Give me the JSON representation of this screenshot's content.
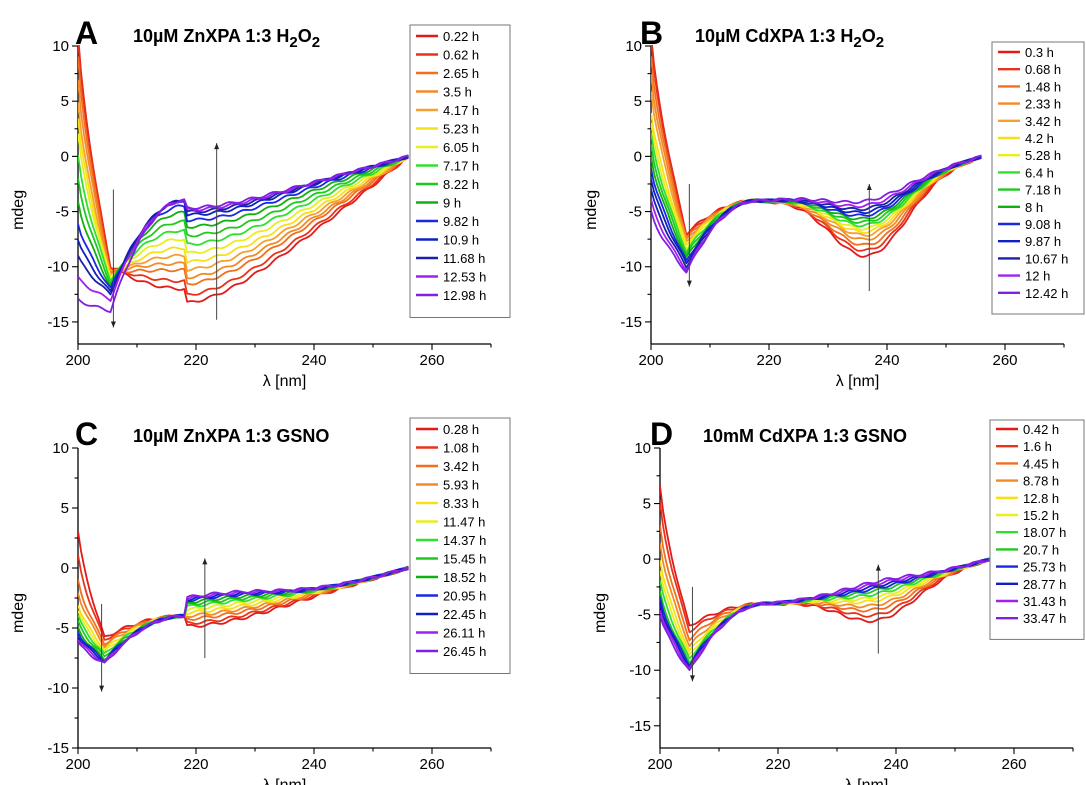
{
  "chart_data": [
    {
      "type": "line",
      "panel_letter": "A",
      "title": "10µM ZnXPA 1:3 H2O2",
      "title_parts": [
        "10µM ZnXPA 1:3 H",
        "2",
        "O",
        "2"
      ],
      "xlabel": "λ [nm]",
      "ylabel": "mdeg",
      "xlim": [
        200,
        270
      ],
      "ylim": [
        -17,
        10
      ],
      "xticks": [
        200,
        220,
        240,
        260
      ],
      "yticks": [
        10,
        5,
        0,
        -5,
        -10,
        -15
      ],
      "grid": false,
      "legend_position": "top-right",
      "dip_wavelength": 205.5,
      "arrow_down": {
        "x": 206,
        "y_from": -3,
        "y_to": -15.5
      },
      "arrow_up": {
        "x": 223.5,
        "y_from": -14.8,
        "y_to": 1.2
      },
      "series": [
        {
          "name": "0.22 h",
          "color": "#e31a1a",
          "early": 11,
          "dip": -10,
          "plateau": -13.5
        },
        {
          "name": "0.62 h",
          "color": "#e8331a",
          "early": 10.5,
          "dip": -10,
          "plateau": -12.8
        },
        {
          "name": "2.65 h",
          "color": "#f07020",
          "early": 9,
          "dip": -10.5,
          "plateau": -11.8
        },
        {
          "name": "3.5 h",
          "color": "#f28a28",
          "early": 7,
          "dip": -10.5,
          "plateau": -11.2
        },
        {
          "name": "4.17 h",
          "color": "#f5a030",
          "early": 5,
          "dip": -10.8,
          "plateau": -10.5
        },
        {
          "name": "5.23 h",
          "color": "#f7e01a",
          "early": 3.5,
          "dip": -11,
          "plateau": -9.8
        },
        {
          "name": "6.05 h",
          "color": "#e8ee20",
          "early": 2,
          "dip": -11,
          "plateau": -9.0
        },
        {
          "name": "7.17 h",
          "color": "#30e030",
          "early": 0,
          "dip": -11.2,
          "plateau": -8.2
        },
        {
          "name": "8.22 h",
          "color": "#20c820",
          "early": -2,
          "dip": -11.5,
          "plateau": -7.4
        },
        {
          "name": "9 h",
          "color": "#10b010",
          "early": -4,
          "dip": -11.8,
          "plateau": -6.6
        },
        {
          "name": "9.82 h",
          "color": "#1a28e0",
          "early": -6,
          "dip": -12,
          "plateau": -6.0
        },
        {
          "name": "10.9 h",
          "color": "#1020c0",
          "early": -7.5,
          "dip": -12.3,
          "plateau": -5.5
        },
        {
          "name": "11.68 h",
          "color": "#1a20a8",
          "early": -9,
          "dip": -12.5,
          "plateau": -5.2
        },
        {
          "name": "12.53 h",
          "color": "#a020f0",
          "early": -11,
          "dip": -13,
          "plateau": -5.0
        },
        {
          "name": "12.98 h",
          "color": "#8020e0",
          "early": -13,
          "dip": -14,
          "plateau": -4.8
        }
      ]
    },
    {
      "type": "line",
      "panel_letter": "B",
      "title": "10µM CdXPA 1:3 H2O2",
      "title_parts": [
        "10µM CdXPA 1:3 H",
        "2",
        "O",
        "2"
      ],
      "xlabel": "λ [nm]",
      "ylabel": "mdeg",
      "xlim": [
        200,
        270
      ],
      "ylim": [
        -17,
        10
      ],
      "xticks": [
        200,
        220,
        240,
        260
      ],
      "yticks": [
        10,
        5,
        0,
        -5,
        -10,
        -15
      ],
      "grid": false,
      "legend_position": "top-right",
      "dip_wavelength": 206,
      "arrow_down": {
        "x": 206.5,
        "y_from": -2.5,
        "y_to": -11.8
      },
      "arrow_up": {
        "x": 237,
        "y_from": -12.2,
        "y_to": -2.5
      },
      "series": [
        {
          "name": "0.3 h",
          "color": "#e31a1a",
          "early": 11,
          "dip": -7.0,
          "plateau": -10.5
        },
        {
          "name": "0.68 h",
          "color": "#e8331a",
          "early": 10.5,
          "dip": -7.2,
          "plateau": -10.0
        },
        {
          "name": "1.48 h",
          "color": "#f07020",
          "early": 9,
          "dip": -7.4,
          "plateau": -9.5
        },
        {
          "name": "2.33 h",
          "color": "#f28a28",
          "early": 7.5,
          "dip": -7.6,
          "plateau": -9.0
        },
        {
          "name": "3.42 h",
          "color": "#f5a030",
          "early": 6,
          "dip": -7.8,
          "plateau": -8.6
        },
        {
          "name": "4.2 h",
          "color": "#f7e01a",
          "early": 4,
          "dip": -8.0,
          "plateau": -8.3
        },
        {
          "name": "5.28 h",
          "color": "#e8ee20",
          "early": 3,
          "dip": -8.3,
          "plateau": -8.0
        },
        {
          "name": "6.4 h",
          "color": "#30e030",
          "early": 2,
          "dip": -8.6,
          "plateau": -7.7
        },
        {
          "name": "7.18 h",
          "color": "#20c820",
          "early": 1,
          "dip": -8.9,
          "plateau": -7.4
        },
        {
          "name": "8 h",
          "color": "#10b010",
          "early": 0,
          "dip": -9.2,
          "plateau": -7.1
        },
        {
          "name": "9.08 h",
          "color": "#1a28e0",
          "early": -1,
          "dip": -9.5,
          "plateau": -6.8
        },
        {
          "name": "9.87 h",
          "color": "#1020c0",
          "early": -2,
          "dip": -9.7,
          "plateau": -6.5
        },
        {
          "name": "10.67 h",
          "color": "#1a20a8",
          "early": -3,
          "dip": -10.0,
          "plateau": -6.2
        },
        {
          "name": "12 h",
          "color": "#a020f0",
          "early": -4,
          "dip": -10.3,
          "plateau": -5.9
        },
        {
          "name": "12.42 h",
          "color": "#8020e0",
          "early": -5,
          "dip": -10.5,
          "plateau": -5.5
        }
      ]
    },
    {
      "type": "line",
      "panel_letter": "C",
      "title": "10µM ZnXPA 1:3 GSNO",
      "xlabel": "λ [nm]",
      "ylabel": "mdeg",
      "xlim": [
        200,
        270
      ],
      "ylim": [
        -15,
        10
      ],
      "xticks": [
        200,
        220,
        240,
        260
      ],
      "yticks": [
        10,
        5,
        0,
        -5,
        -10,
        -15
      ],
      "grid": false,
      "legend_position": "top-right",
      "dip_wavelength": 204.5,
      "arrow_down": {
        "x": 204,
        "y_from": -3,
        "y_to": -10.3
      },
      "arrow_up": {
        "x": 221.5,
        "y_from": -7.5,
        "y_to": 0.8
      },
      "series": [
        {
          "name": "0.28 h",
          "color": "#e31a1a",
          "early": 3,
          "dip": -5.8,
          "plateau": -5.0
        },
        {
          "name": "1.08 h",
          "color": "#e8331a",
          "early": 1,
          "dip": -6.0,
          "plateau": -4.7
        },
        {
          "name": "3.42 h",
          "color": "#f07020",
          "early": -1,
          "dip": -6.3,
          "plateau": -4.3
        },
        {
          "name": "5.93 h",
          "color": "#f28a28",
          "early": -2,
          "dip": -6.5,
          "plateau": -4.0
        },
        {
          "name": "8.33 h",
          "color": "#f5e01a",
          "early": -3,
          "dip": -6.8,
          "plateau": -3.7
        },
        {
          "name": "11.47 h",
          "color": "#e8ee20",
          "early": -3.5,
          "dip": -7.0,
          "plateau": -3.4
        },
        {
          "name": "14.37 h",
          "color": "#30e030",
          "early": -4,
          "dip": -7.2,
          "plateau": -3.1
        },
        {
          "name": "15.45 h",
          "color": "#20c820",
          "early": -4.5,
          "dip": -7.4,
          "plateau": -2.9
        },
        {
          "name": "18.52 h",
          "color": "#10b010",
          "early": -5,
          "dip": -7.6,
          "plateau": -2.7
        },
        {
          "name": "20.95 h",
          "color": "#1a28e0",
          "early": -5.3,
          "dip": -7.7,
          "plateau": -2.5
        },
        {
          "name": "22.45 h",
          "color": "#1020c0",
          "early": -5.6,
          "dip": -7.8,
          "plateau": -2.4
        },
        {
          "name": "26.11 h",
          "color": "#a020f0",
          "early": -5.9,
          "dip": -7.9,
          "plateau": -2.3
        },
        {
          "name": "26.45 h",
          "color": "#8020e0",
          "early": -6.2,
          "dip": -8.0,
          "plateau": -2.2
        }
      ]
    },
    {
      "type": "line",
      "panel_letter": "D",
      "title": "10mM CdXPA 1:3 GSNO",
      "xlabel": "λ [nm]",
      "ylabel": "mdeg",
      "xlim": [
        200,
        270
      ],
      "ylim": [
        -17,
        10
      ],
      "xticks": [
        200,
        220,
        240,
        260
      ],
      "yticks": [
        10,
        5,
        0,
        -5,
        -10,
        -15
      ],
      "grid": false,
      "legend_position": "top-right",
      "dip_wavelength": 205,
      "arrow_down": {
        "x": 205.5,
        "y_from": -2.5,
        "y_to": -11
      },
      "arrow_up": {
        "x": 237,
        "y_from": -8.5,
        "y_to": -0.5
      },
      "series": [
        {
          "name": "0.42 h",
          "color": "#e31a1a",
          "early": 6.5,
          "dip": -6.0,
          "plateau": -7.0
        },
        {
          "name": "1.6 h",
          "color": "#e8331a",
          "early": 5,
          "dip": -6.5,
          "plateau": -6.5
        },
        {
          "name": "4.45 h",
          "color": "#f07020",
          "early": 3,
          "dip": -7.2,
          "plateau": -6.0
        },
        {
          "name": "8.78 h",
          "color": "#f28a28",
          "early": 1.5,
          "dip": -7.8,
          "plateau": -5.6
        },
        {
          "name": "12.8 h",
          "color": "#f5e01a",
          "early": 0,
          "dip": -8.3,
          "plateau": -5.2
        },
        {
          "name": "15.2 h",
          "color": "#e8ee20",
          "early": -1,
          "dip": -8.7,
          "plateau": -4.9
        },
        {
          "name": "18.07 h",
          "color": "#30e030",
          "early": -2,
          "dip": -9.0,
          "plateau": -4.6
        },
        {
          "name": "20.7 h",
          "color": "#20c820",
          "early": -3,
          "dip": -9.3,
          "plateau": -4.3
        },
        {
          "name": "25.73 h",
          "color": "#1a28e0",
          "early": -3.5,
          "dip": -9.5,
          "plateau": -4.1
        },
        {
          "name": "28.77 h",
          "color": "#1020c0",
          "early": -4,
          "dip": -9.7,
          "plateau": -3.9
        },
        {
          "name": "31.43 h",
          "color": "#a020f0",
          "early": -4.5,
          "dip": -9.9,
          "plateau": -3.7
        },
        {
          "name": "33.47 h",
          "color": "#8020e0",
          "early": -5,
          "dip": -10.1,
          "plateau": -3.5
        }
      ]
    }
  ]
}
